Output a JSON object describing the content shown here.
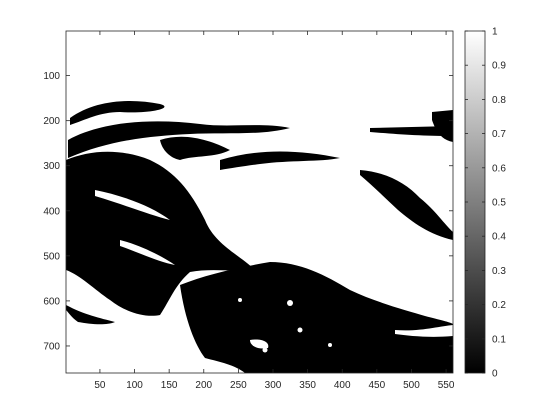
{
  "figure": {
    "type": "image_with_colorbar",
    "image": {
      "description_free": true,
      "colormap": "gray",
      "x_ticks": [
        "50",
        "100",
        "150",
        "200",
        "250",
        "300",
        "350",
        "400",
        "450",
        "500",
        "550"
      ],
      "y_ticks": [
        "100",
        "200",
        "300",
        "400",
        "500",
        "600",
        "700"
      ],
      "x_range": [
        1,
        560
      ],
      "y_range": [
        1,
        760
      ]
    },
    "colorbar": {
      "ticks": [
        "0",
        "0.1",
        "0.2",
        "0.3",
        "0.4",
        "0.5",
        "0.6",
        "0.7",
        "0.8",
        "0.9",
        "1"
      ],
      "range": [
        0,
        1
      ]
    }
  }
}
